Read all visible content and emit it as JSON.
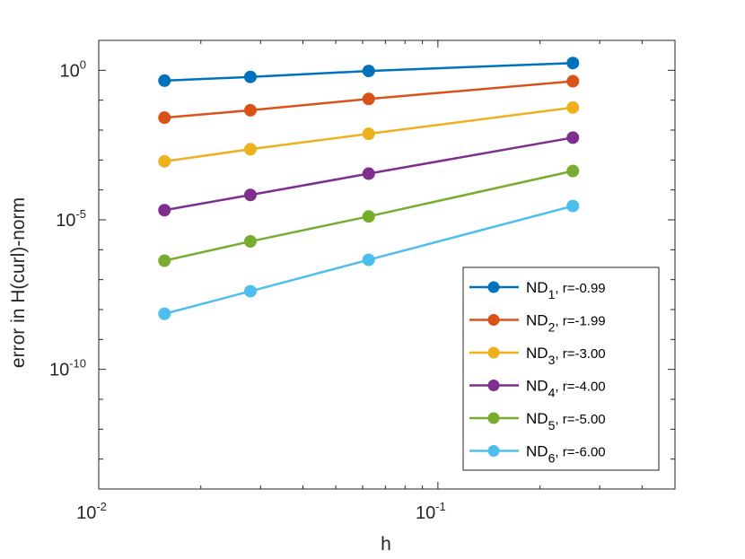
{
  "chart_data": {
    "type": "line",
    "xscale": "log",
    "yscale": "log",
    "xlabel": "h",
    "ylabel": "error in H(curl)-norm",
    "xlim": [
      0.01,
      0.5
    ],
    "ylim": [
      1e-14,
      10
    ],
    "x": [
      0.015625,
      0.028,
      0.0625,
      0.25
    ],
    "x_tick_labels": [
      {
        "base": "10",
        "exp": "-2"
      },
      {
        "base": "10",
        "exp": "-1"
      }
    ],
    "y_tick_labels": [
      {
        "base": "10",
        "exp": "0"
      },
      {
        "base": "10",
        "exp": "-5"
      },
      {
        "base": "10",
        "exp": "-10"
      }
    ],
    "series": [
      {
        "name": "ND",
        "sub": "1",
        "suffix": ", r=-0.99",
        "color": "#0072BD",
        "values": [
          0.45,
          0.6,
          0.95,
          1.75
        ]
      },
      {
        "name": "ND",
        "sub": "2",
        "suffix": ", r=-1.99",
        "color": "#D95319",
        "values": [
          0.026,
          0.046,
          0.11,
          0.43
        ]
      },
      {
        "name": "ND",
        "sub": "3",
        "suffix": ", r=-3.00",
        "color": "#EDB120",
        "values": [
          0.0009,
          0.0023,
          0.0075,
          0.057
        ]
      },
      {
        "name": "ND",
        "sub": "4",
        "suffix": ", r=-4.00",
        "color": "#7E2F8E",
        "values": [
          2.1e-05,
          6.8e-05,
          0.00035,
          0.0056
        ]
      },
      {
        "name": "ND",
        "sub": "5",
        "suffix": ", r=-5.00",
        "color": "#77AC30",
        "values": [
          4.3e-07,
          1.9e-06,
          1.3e-05,
          0.00043
        ]
      },
      {
        "name": "ND",
        "sub": "6",
        "suffix": ", r=-6.00",
        "color": "#4DBEEE",
        "values": [
          7.2e-09,
          4.1e-08,
          4.6e-07,
          2.9e-05
        ]
      }
    ],
    "legend_position": "bottom-right"
  }
}
